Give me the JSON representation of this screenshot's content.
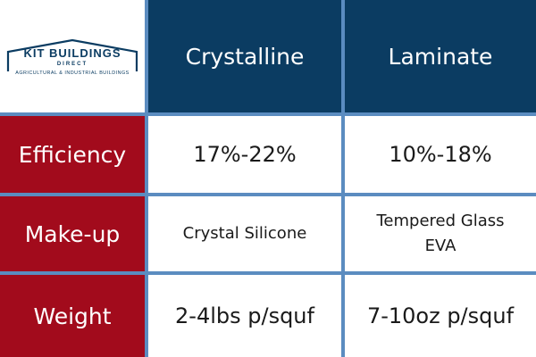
{
  "logo": {
    "name": "KIT BUILDINGS",
    "direct": "DIRECT",
    "tagline": "AGRICULTURAL & INDUSTRIAL BUILDINGS",
    "icon": "barn-outline-icon",
    "color": "#0b3c62"
  },
  "columns": [
    "Crystalline",
    "Laminate"
  ],
  "rows": [
    {
      "label": "Efficiency",
      "values": [
        "17%-22%",
        "10%-18%"
      ]
    },
    {
      "label": "Make-up",
      "values": [
        [
          "Crystal Silicone"
        ],
        [
          "Tempered Glass",
          "EVA"
        ]
      ]
    },
    {
      "label": "Weight",
      "values": [
        "2-4lbs p/squf",
        "7-10oz p/squf"
      ]
    }
  ],
  "colors": {
    "header_bg": "#0b3c62",
    "row_header_bg": "#a20b1c",
    "grid_line": "#5b8cc0",
    "cell_bg": "#ffffff"
  }
}
